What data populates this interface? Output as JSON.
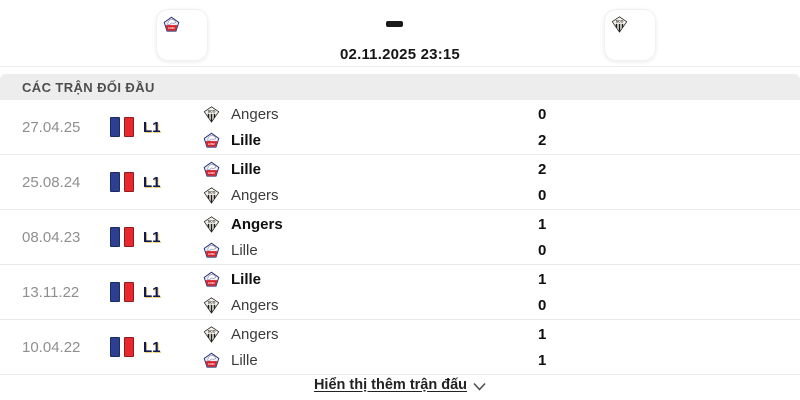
{
  "match_header": {
    "home_logo": "LOSC",
    "away_logo": "SCO",
    "kickoff_datetime": "02.11.2025 23:15"
  },
  "section": {
    "title": "CÁC TRẬN ĐỐI ĐẦU"
  },
  "matches": [
    {
      "date": "27.04.25",
      "league": "L1",
      "rows": [
        {
          "team": "Angers",
          "logo": "angers",
          "score": "0",
          "winner": false
        },
        {
          "team": "Lille",
          "logo": "lille",
          "score": "2",
          "winner": true
        }
      ]
    },
    {
      "date": "25.08.24",
      "league": "L1",
      "rows": [
        {
          "team": "Lille",
          "logo": "lille",
          "score": "2",
          "winner": true
        },
        {
          "team": "Angers",
          "logo": "angers",
          "score": "0",
          "winner": false
        }
      ]
    },
    {
      "date": "08.04.23",
      "league": "L1",
      "rows": [
        {
          "team": "Angers",
          "logo": "angers",
          "score": "1",
          "winner": true
        },
        {
          "team": "Lille",
          "logo": "lille",
          "score": "0",
          "winner": false
        }
      ]
    },
    {
      "date": "13.11.22",
      "league": "L1",
      "rows": [
        {
          "team": "Lille",
          "logo": "lille",
          "score": "1",
          "winner": true
        },
        {
          "team": "Angers",
          "logo": "angers",
          "score": "0",
          "winner": false
        }
      ]
    },
    {
      "date": "10.04.22",
      "league": "L1",
      "rows": [
        {
          "team": "Angers",
          "logo": "angers",
          "score": "1",
          "winner": false
        },
        {
          "team": "Lille",
          "logo": "lille",
          "score": "1",
          "winner": false
        }
      ]
    }
  ],
  "footer": {
    "show_more_label": "Hiển thị thêm trận đấu"
  },
  "colors": {
    "section_bg": "#ededed",
    "league_navy": "#10194f",
    "flag_blue": "#2e3f92",
    "flag_red": "#e8282d",
    "date_gray": "#8f8f8f",
    "lille_navy": "#2b3576",
    "lille_red": "#d8232a",
    "angers_black": "#1d1d1d"
  }
}
